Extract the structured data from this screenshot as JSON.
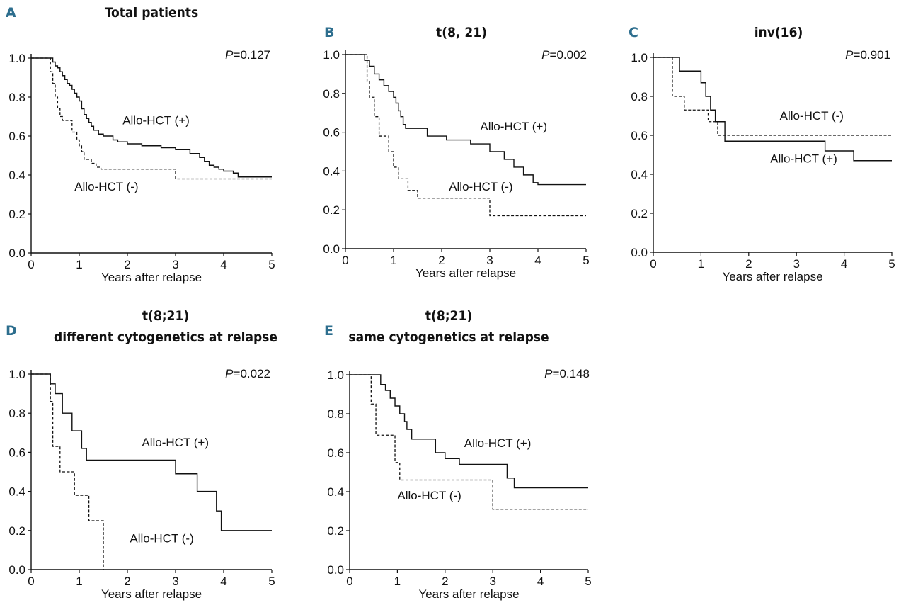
{
  "figure": {
    "panels": [
      {
        "letter": "A",
        "title_lines": [
          "Total patients"
        ],
        "p_italic": "P",
        "p_rest": "=0.127",
        "xlabel": "Years after relapse"
      },
      {
        "letter": "B",
        "title_lines": [
          "t(8, 21)"
        ],
        "p_italic": "P",
        "p_rest": "=0.002",
        "xlabel": "Years after relapse"
      },
      {
        "letter": "C",
        "title_lines": [
          "inv(16)"
        ],
        "p_italic": "P",
        "p_rest": "=0.901",
        "xlabel": "Years after relapse"
      },
      {
        "letter": "D",
        "title_lines": [
          "t(8;21)",
          "different cytogenetics at relapse"
        ],
        "p_italic": "P",
        "p_rest": "=0.022",
        "xlabel": "Years after relapse"
      },
      {
        "letter": "E",
        "title_lines": [
          "t(8;21)",
          "same cytogenetics at relapse"
        ],
        "p_italic": "P",
        "p_rest": "=0.148",
        "xlabel": "Years after relapse"
      }
    ]
  },
  "chart_data": [
    {
      "type": "line",
      "subtype": "kaplan-meier",
      "title": "Total patients",
      "xlabel": "Years after relapse",
      "ylabel": "",
      "xlim": [
        0,
        5
      ],
      "ylim": [
        0,
        1
      ],
      "x_ticks": [
        "0",
        "1",
        "2",
        "3",
        "4",
        "5"
      ],
      "y_ticks": [
        "0.0",
        "0.2",
        "0.4",
        "0.6",
        "0.8",
        "1.0"
      ],
      "p_value": "P=0.127",
      "series": [
        {
          "name": "Allo-HCT (+)",
          "style": "solid",
          "x": [
            0,
            0.45,
            0.5,
            0.55,
            0.6,
            0.65,
            0.7,
            0.75,
            0.8,
            0.85,
            0.9,
            0.95,
            1.0,
            1.05,
            1.1,
            1.15,
            1.2,
            1.25,
            1.3,
            1.4,
            1.5,
            1.7,
            1.8,
            2.0,
            2.3,
            2.7,
            3.0,
            3.3,
            3.5,
            3.6,
            3.7,
            3.8,
            3.9,
            4.0,
            4.2,
            4.3,
            5.0
          ],
          "y": [
            1.0,
            0.98,
            0.96,
            0.95,
            0.93,
            0.91,
            0.89,
            0.87,
            0.86,
            0.84,
            0.82,
            0.8,
            0.78,
            0.74,
            0.71,
            0.69,
            0.67,
            0.65,
            0.63,
            0.61,
            0.6,
            0.58,
            0.57,
            0.56,
            0.55,
            0.54,
            0.53,
            0.51,
            0.49,
            0.47,
            0.45,
            0.44,
            0.43,
            0.42,
            0.41,
            0.39,
            0.39
          ]
        },
        {
          "name": "Allo-HCT (-)",
          "style": "dashed",
          "x": [
            0,
            0.4,
            0.45,
            0.5,
            0.55,
            0.6,
            0.65,
            0.85,
            0.95,
            1.0,
            1.05,
            1.1,
            1.25,
            1.35,
            1.45,
            3.0,
            5.0
          ],
          "y": [
            1.0,
            0.93,
            0.87,
            0.8,
            0.74,
            0.7,
            0.68,
            0.62,
            0.58,
            0.55,
            0.52,
            0.48,
            0.46,
            0.44,
            0.43,
            0.38,
            0.38
          ]
        }
      ],
      "annotations": [
        {
          "text": "Allo-HCT (+)",
          "x": 1.9,
          "y": 0.66
        },
        {
          "text": "Allo-HCT (-)",
          "x": 0.9,
          "y": 0.32
        }
      ]
    },
    {
      "type": "line",
      "subtype": "kaplan-meier",
      "title": "t(8, 21)",
      "xlabel": "Years after relapse",
      "ylabel": "",
      "xlim": [
        0,
        5
      ],
      "ylim": [
        0,
        1
      ],
      "x_ticks": [
        "0",
        "1",
        "2",
        "3",
        "4",
        "5"
      ],
      "y_ticks": [
        "0.0",
        "0.2",
        "0.4",
        "0.6",
        "0.8",
        "1.0"
      ],
      "p_value": "P=0.002",
      "series": [
        {
          "name": "Allo-HCT (+)",
          "style": "solid",
          "x": [
            0,
            0.4,
            0.5,
            0.6,
            0.7,
            0.8,
            0.9,
            1.0,
            1.05,
            1.1,
            1.15,
            1.2,
            1.25,
            1.7,
            2.1,
            2.6,
            3.0,
            3.3,
            3.5,
            3.7,
            3.9,
            4.0,
            5.0
          ],
          "y": [
            1.0,
            0.97,
            0.94,
            0.9,
            0.87,
            0.84,
            0.81,
            0.78,
            0.75,
            0.71,
            0.68,
            0.64,
            0.62,
            0.58,
            0.56,
            0.54,
            0.5,
            0.46,
            0.42,
            0.38,
            0.34,
            0.33,
            0.33
          ]
        },
        {
          "name": "Allo-HCT (-)",
          "style": "dashed",
          "x": [
            0,
            0.45,
            0.5,
            0.6,
            0.7,
            0.9,
            1.0,
            1.1,
            1.3,
            1.5,
            3.0,
            5.0
          ],
          "y": [
            1.0,
            0.86,
            0.78,
            0.68,
            0.58,
            0.5,
            0.42,
            0.36,
            0.3,
            0.26,
            0.17,
            0.17
          ]
        }
      ],
      "annotations": [
        {
          "text": "Allo-HCT (+)",
          "x": 2.8,
          "y": 0.61
        },
        {
          "text": "Allo-HCT (-)",
          "x": 2.15,
          "y": 0.3
        }
      ]
    },
    {
      "type": "line",
      "subtype": "kaplan-meier",
      "title": "inv(16)",
      "xlabel": "Years after relapse",
      "ylabel": "",
      "xlim": [
        0,
        5
      ],
      "ylim": [
        0,
        1
      ],
      "x_ticks": [
        "0",
        "1",
        "2",
        "3",
        "4",
        "5"
      ],
      "y_ticks": [
        "0.0",
        "0.2",
        "0.4",
        "0.6",
        "0.8",
        "1.0"
      ],
      "p_value": "P=0.901",
      "series": [
        {
          "name": "Allo-HCT (+)",
          "style": "solid",
          "x": [
            0,
            0.55,
            1.0,
            1.1,
            1.2,
            1.3,
            1.5,
            3.6,
            4.2,
            5.0
          ],
          "y": [
            1.0,
            0.93,
            0.87,
            0.8,
            0.73,
            0.67,
            0.57,
            0.52,
            0.47,
            0.47
          ]
        },
        {
          "name": "Allo-HCT (-)",
          "style": "dashed",
          "x": [
            0,
            0.4,
            0.65,
            1.15,
            1.35,
            5.0
          ],
          "y": [
            1.0,
            0.8,
            0.73,
            0.67,
            0.6,
            0.6
          ]
        }
      ],
      "annotations": [
        {
          "text": "Allo-HCT (-)",
          "x": 2.65,
          "y": 0.68
        },
        {
          "text": "Allo-HCT (+)",
          "x": 2.45,
          "y": 0.46
        }
      ]
    },
    {
      "type": "line",
      "subtype": "kaplan-meier",
      "title": "t(8;21) different cytogenetics at relapse",
      "xlabel": "Years after relapse",
      "ylabel": "",
      "xlim": [
        0,
        5
      ],
      "ylim": [
        0,
        1
      ],
      "x_ticks": [
        "0",
        "1",
        "2",
        "3",
        "4",
        "5"
      ],
      "y_ticks": [
        "0.0",
        "0.2",
        "0.4",
        "0.6",
        "0.8",
        "1.0"
      ],
      "p_value": "P=0.022",
      "series": [
        {
          "name": "Allo-HCT (+)",
          "style": "solid",
          "x": [
            0,
            0.4,
            0.5,
            0.65,
            0.85,
            1.05,
            1.15,
            3.0,
            3.45,
            3.85,
            3.95,
            5.0
          ],
          "y": [
            1.0,
            0.95,
            0.9,
            0.8,
            0.71,
            0.62,
            0.56,
            0.49,
            0.4,
            0.3,
            0.2,
            0.2
          ]
        },
        {
          "name": "Allo-HCT (-)",
          "style": "dashed",
          "x": [
            0,
            0.4,
            0.45,
            0.6,
            0.9,
            1.2,
            1.5
          ],
          "y": [
            1.0,
            0.86,
            0.63,
            0.5,
            0.38,
            0.25,
            0.0
          ]
        }
      ],
      "annotations": [
        {
          "text": "Allo-HCT (+)",
          "x": 2.3,
          "y": 0.63
        },
        {
          "text": "Allo-HCT (-)",
          "x": 2.05,
          "y": 0.14
        }
      ]
    },
    {
      "type": "line",
      "subtype": "kaplan-meier",
      "title": "t(8;21) same cytogenetics at relapse",
      "xlabel": "Years after relapse",
      "ylabel": "",
      "xlim": [
        0,
        5
      ],
      "ylim": [
        0,
        1
      ],
      "x_ticks": [
        "0",
        "1",
        "2",
        "3",
        "4",
        "5"
      ],
      "y_ticks": [
        "0.0",
        "0.2",
        "0.4",
        "0.6",
        "0.8",
        "1.0"
      ],
      "p_value": "P=0.148",
      "series": [
        {
          "name": "Allo-HCT (+)",
          "style": "solid",
          "x": [
            0,
            0.65,
            0.75,
            0.85,
            0.95,
            1.05,
            1.15,
            1.2,
            1.3,
            1.8,
            2.0,
            2.3,
            3.3,
            3.45,
            5.0
          ],
          "y": [
            1.0,
            0.95,
            0.92,
            0.88,
            0.84,
            0.8,
            0.76,
            0.72,
            0.67,
            0.6,
            0.57,
            0.54,
            0.47,
            0.42,
            0.42
          ]
        },
        {
          "name": "Allo-HCT (-)",
          "style": "dashed",
          "x": [
            0,
            0.45,
            0.55,
            0.95,
            1.05,
            3.0,
            5.0
          ],
          "y": [
            1.0,
            0.85,
            0.69,
            0.55,
            0.46,
            0.31,
            0.31
          ]
        }
      ],
      "annotations": [
        {
          "text": "Allo-HCT (+)",
          "x": 2.4,
          "y": 0.63
        },
        {
          "text": "Allo-HCT (-)",
          "x": 1.0,
          "y": 0.36
        }
      ]
    }
  ]
}
